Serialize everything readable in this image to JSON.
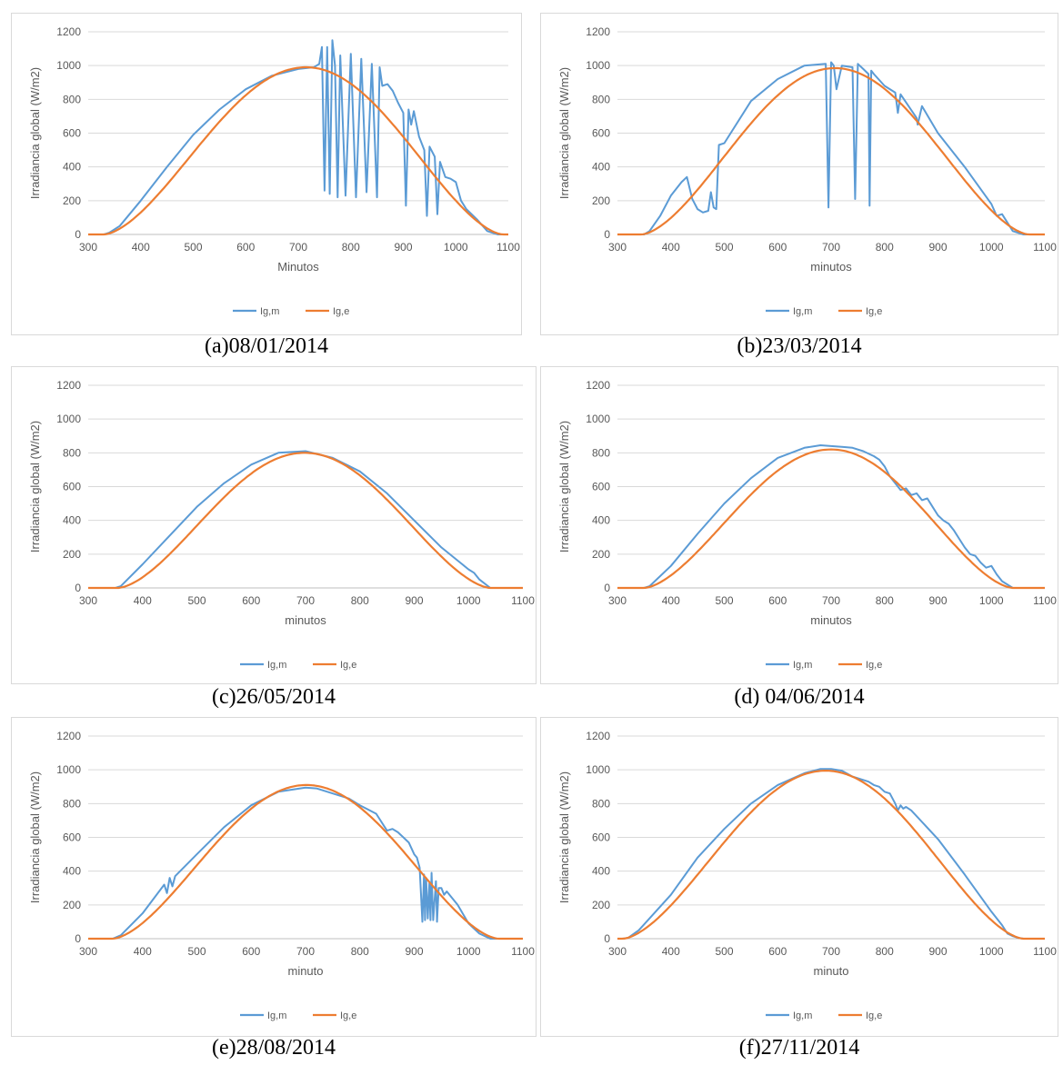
{
  "colors": {
    "measured": "#5b9bd5",
    "estimated": "#ed7d31",
    "grid": "#d9d9d9",
    "axis": "#bfbfbf"
  },
  "chart_data": [
    {
      "type": "line",
      "caption": "(a)08/01/2014",
      "xlabel": "Minutos",
      "ylabel": "Irradiancia global (W/m2)",
      "xlim": [
        300,
        1100
      ],
      "ylim": [
        0,
        1200
      ],
      "xticks": [
        300,
        400,
        500,
        600,
        700,
        800,
        900,
        1000,
        1100
      ],
      "yticks": [
        0,
        200,
        400,
        600,
        800,
        1000,
        1200
      ],
      "grid": true,
      "legend": "bottom",
      "estimated": {
        "name": "Ig,e",
        "start": 330,
        "end": 1090,
        "peak_x": 715,
        "peak": 990
      },
      "series": [
        {
          "name": "Ig,m",
          "x": [
            300,
            330,
            340,
            360,
            400,
            450,
            500,
            550,
            600,
            650,
            700,
            730,
            740,
            745,
            750,
            755,
            760,
            765,
            770,
            775,
            780,
            790,
            800,
            810,
            820,
            830,
            840,
            850,
            855,
            860,
            870,
            880,
            890,
            900,
            905,
            910,
            915,
            920,
            930,
            940,
            945,
            950,
            960,
            965,
            970,
            980,
            990,
            1000,
            1010,
            1020,
            1040,
            1060,
            1080,
            1090,
            1100
          ],
          "y": [
            0,
            0,
            10,
            50,
            200,
            400,
            590,
            740,
            860,
            940,
            980,
            990,
            1010,
            1110,
            260,
            1110,
            240,
            1150,
            1000,
            220,
            1060,
            230,
            1070,
            220,
            1040,
            250,
            1010,
            220,
            990,
            880,
            890,
            850,
            780,
            720,
            170,
            740,
            650,
            730,
            580,
            500,
            110,
            520,
            460,
            120,
            430,
            340,
            330,
            310,
            200,
            150,
            90,
            20,
            0,
            0,
            0
          ]
        }
      ]
    },
    {
      "type": "line",
      "caption": "(b)23/03/2014",
      "xlabel": "minutos",
      "ylabel": "Irradiancia global (W/m2)",
      "xlim": [
        300,
        1100
      ],
      "ylim": [
        0,
        1200
      ],
      "xticks": [
        300,
        400,
        500,
        600,
        700,
        800,
        900,
        1000,
        1100
      ],
      "yticks": [
        0,
        200,
        400,
        600,
        800,
        1000,
        1200
      ],
      "grid": true,
      "legend": "bottom",
      "estimated": {
        "name": "Ig,e",
        "start": 345,
        "end": 1070,
        "peak_x": 707,
        "peak": 985
      },
      "series": [
        {
          "name": "Ig,m",
          "x": [
            300,
            350,
            360,
            380,
            400,
            420,
            430,
            440,
            450,
            460,
            470,
            475,
            480,
            485,
            490,
            500,
            550,
            600,
            650,
            690,
            695,
            700,
            705,
            710,
            720,
            740,
            745,
            750,
            760,
            770,
            772,
            775,
            780,
            800,
            820,
            825,
            830,
            860,
            862,
            870,
            900,
            950,
            1000,
            1010,
            1020,
            1040,
            1060,
            1080,
            1100
          ],
          "y": [
            0,
            0,
            20,
            110,
            230,
            310,
            340,
            210,
            150,
            130,
            140,
            250,
            160,
            150,
            530,
            540,
            790,
            920,
            1000,
            1010,
            160,
            1020,
            1000,
            860,
            1000,
            990,
            210,
            1010,
            980,
            950,
            170,
            970,
            950,
            880,
            840,
            720,
            830,
            690,
            650,
            760,
            600,
            400,
            180,
            110,
            120,
            20,
            0,
            0,
            0
          ]
        }
      ]
    },
    {
      "type": "line",
      "caption": "(c)26/05/2014",
      "xlabel": "minutos",
      "ylabel": "Irradiancia global (W/m2)",
      "xlim": [
        300,
        1100
      ],
      "ylim": [
        0,
        1200
      ],
      "xticks": [
        300,
        400,
        500,
        600,
        700,
        800,
        900,
        1000,
        1100
      ],
      "yticks": [
        0,
        200,
        400,
        600,
        800,
        1000,
        1200
      ],
      "grid": true,
      "legend": "bottom",
      "estimated": {
        "name": "Ig,e",
        "start": 355,
        "end": 1040,
        "peak_x": 698,
        "peak": 800
      },
      "series": [
        {
          "name": "Ig,m",
          "x": [
            300,
            350,
            360,
            400,
            450,
            500,
            550,
            600,
            650,
            700,
            750,
            800,
            850,
            900,
            950,
            1000,
            1010,
            1020,
            1040,
            1060,
            1100
          ],
          "y": [
            0,
            0,
            10,
            140,
            310,
            480,
            620,
            730,
            800,
            810,
            770,
            690,
            560,
            400,
            240,
            110,
            90,
            50,
            0,
            0,
            0
          ]
        }
      ]
    },
    {
      "type": "line",
      "caption": "(d) 04/06/2014",
      "xlabel": "minutos",
      "ylabel": "Irradiancia global (W/m2)",
      "xlim": [
        300,
        1100
      ],
      "ylim": [
        0,
        1200
      ],
      "xticks": [
        300,
        400,
        500,
        600,
        700,
        800,
        900,
        1000,
        1100
      ],
      "yticks": [
        0,
        200,
        400,
        600,
        800,
        1000,
        1200
      ],
      "grid": true,
      "legend": "bottom",
      "estimated": {
        "name": "Ig,e",
        "start": 350,
        "end": 1040,
        "peak_x": 700,
        "peak": 820
      },
      "series": [
        {
          "name": "Ig,m",
          "x": [
            300,
            350,
            360,
            400,
            450,
            500,
            550,
            600,
            650,
            680,
            700,
            720,
            740,
            760,
            780,
            790,
            800,
            810,
            820,
            830,
            840,
            850,
            860,
            870,
            880,
            890,
            900,
            910,
            920,
            930,
            940,
            950,
            960,
            970,
            980,
            990,
            1000,
            1010,
            1020,
            1040,
            1060,
            1100
          ],
          "y": [
            0,
            0,
            10,
            130,
            320,
            500,
            650,
            770,
            830,
            845,
            840,
            835,
            830,
            810,
            780,
            760,
            720,
            660,
            620,
            580,
            590,
            550,
            560,
            520,
            530,
            480,
            430,
            400,
            380,
            340,
            290,
            240,
            200,
            190,
            150,
            120,
            130,
            80,
            40,
            0,
            0,
            0
          ]
        }
      ]
    },
    {
      "type": "line",
      "caption": "(e)28/08/2014",
      "xlabel": "minuto",
      "ylabel": "Irradiancia global (W/m2)",
      "xlim": [
        300,
        1100
      ],
      "ylim": [
        0,
        1200
      ],
      "xticks": [
        300,
        400,
        500,
        600,
        700,
        800,
        900,
        1000,
        1100
      ],
      "yticks": [
        0,
        200,
        400,
        600,
        800,
        1000,
        1200
      ],
      "grid": true,
      "legend": "bottom",
      "estimated": {
        "name": "Ig,e",
        "start": 345,
        "end": 1055,
        "peak_x": 702,
        "peak": 910
      },
      "series": [
        {
          "name": "Ig,m",
          "x": [
            300,
            345,
            360,
            400,
            440,
            445,
            450,
            455,
            460,
            500,
            550,
            600,
            650,
            700,
            720,
            750,
            780,
            800,
            830,
            850,
            860,
            870,
            880,
            890,
            900,
            905,
            910,
            915,
            918,
            920,
            922,
            925,
            928,
            930,
            932,
            935,
            940,
            942,
            945,
            950,
            955,
            960,
            970,
            980,
            1000,
            1020,
            1040,
            1060,
            1100
          ],
          "y": [
            0,
            0,
            20,
            150,
            320,
            270,
            360,
            310,
            370,
            500,
            660,
            790,
            870,
            895,
            890,
            860,
            830,
            790,
            740,
            640,
            650,
            630,
            600,
            570,
            500,
            480,
            420,
            100,
            380,
            110,
            360,
            120,
            330,
            110,
            390,
            110,
            340,
            100,
            300,
            300,
            260,
            280,
            240,
            200,
            90,
            30,
            0,
            0,
            0
          ]
        }
      ]
    },
    {
      "type": "line",
      "caption": "(f)27/11/2014",
      "xlabel": "minuto",
      "ylabel": "Irradiancia global (W/m2)",
      "xlim": [
        300,
        1100
      ],
      "ylim": [
        0,
        1200
      ],
      "xticks": [
        300,
        400,
        500,
        600,
        700,
        800,
        900,
        1000,
        1100
      ],
      "yticks": [
        0,
        200,
        400,
        600,
        800,
        1000,
        1200
      ],
      "grid": true,
      "legend": "bottom",
      "estimated": {
        "name": "Ig,e",
        "start": 310,
        "end": 1060,
        "peak_x": 690,
        "peak": 995
      },
      "series": [
        {
          "name": "Ig,m",
          "x": [
            300,
            310,
            320,
            340,
            400,
            450,
            500,
            550,
            600,
            650,
            680,
            700,
            720,
            740,
            760,
            770,
            780,
            790,
            800,
            810,
            820,
            825,
            830,
            835,
            840,
            850,
            900,
            950,
            1000,
            1020,
            1030,
            1040,
            1050,
            1060,
            1100
          ],
          "y": [
            0,
            0,
            5,
            50,
            260,
            480,
            650,
            800,
            910,
            980,
            1005,
            1005,
            995,
            960,
            940,
            930,
            910,
            900,
            870,
            860,
            800,
            760,
            790,
            770,
            780,
            760,
            590,
            380,
            160,
            80,
            30,
            15,
            5,
            0,
            0
          ]
        }
      ]
    }
  ]
}
